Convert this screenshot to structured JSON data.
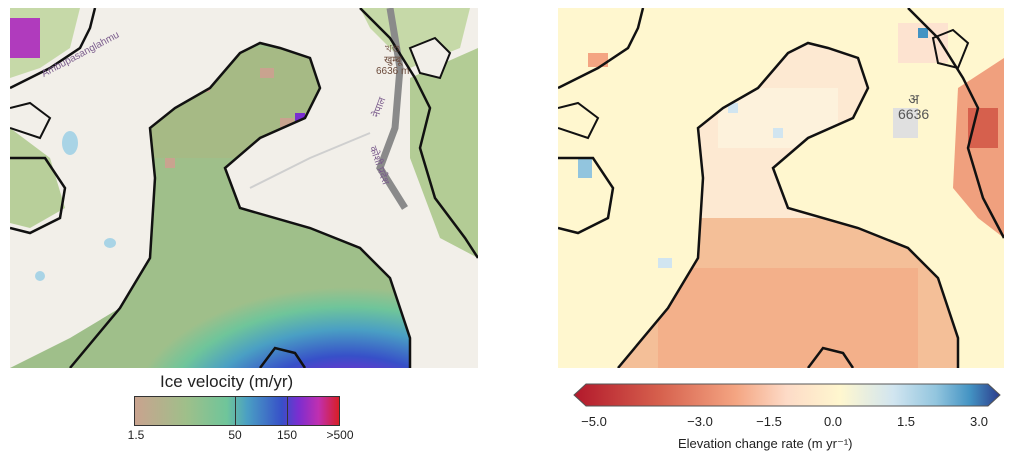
{
  "left_panel": {
    "colorbar": {
      "title": "Ice velocity (m/yr)",
      "ticks": [
        "1.5",
        "50",
        "150",
        ">500"
      ],
      "colors": [
        "#c9a38f",
        "#9fbf8a",
        "#6fc59a",
        "#4a9fc4",
        "#3750c8",
        "#7a2ed0",
        "#c02fb0",
        "#d81f26"
      ]
    },
    "map_labels": {
      "river": "Ambupasanglahmu",
      "region1": "नेपाल",
      "region2": "कोशी प्रदेश",
      "peak_line1": "খণ্ড",
      "peak_line2": "खुम्बू",
      "peak_line3": "6636 m"
    }
  },
  "right_panel": {
    "colorbar": {
      "title": "Elevation change rate (m yr⁻¹)",
      "ticks": [
        "−5.0",
        "−3.0",
        "−1.5",
        "0.0",
        "1.5",
        "3.0"
      ],
      "colors": [
        "#b2182b",
        "#d6604d",
        "#f4a582",
        "#fddbc7",
        "#fff7cf",
        "#d1e5f0",
        "#92c5de",
        "#4393c3",
        "#2c3c8c"
      ]
    },
    "map_labels": {
      "peak_line1": "अ",
      "peak_line2": "6636"
    }
  }
}
